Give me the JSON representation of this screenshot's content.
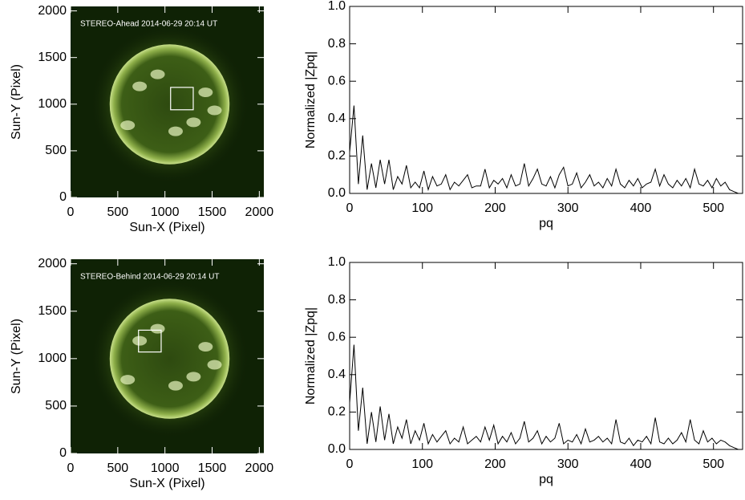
{
  "chart_data": [
    {
      "type": "image",
      "annotation": "STEREO-Ahead 2014-06-29 20:14 UT",
      "xlabel": "Sun-X (Pixel)",
      "ylabel": "Sun-Y (Pixel)",
      "xlim": [
        0,
        2048
      ],
      "ylim": [
        0,
        2048
      ],
      "xticks": [
        0,
        500,
        1000,
        1500,
        2000
      ],
      "yticks": [
        0,
        500,
        1000,
        1500,
        2000
      ],
      "box": {
        "x": [
          1060,
          1300
        ],
        "y": [
          940,
          1180
        ]
      }
    },
    {
      "type": "line",
      "xlabel": "pq",
      "ylabel": "Normalized |Zpq|",
      "color": "#000000",
      "xlim": [
        0,
        540
      ],
      "ylim": [
        0,
        1
      ],
      "xticks": [
        0,
        100,
        200,
        300,
        400,
        500
      ],
      "yticks": [
        {
          "value": 0,
          "label": "0.0"
        },
        {
          "value": 0.2,
          "label": "0.2"
        },
        {
          "value": 0.4,
          "label": "0.4"
        },
        {
          "value": 0.6,
          "label": "0.6"
        },
        {
          "value": 0.8,
          "label": "0.8"
        },
        {
          "value": 1,
          "label": "1.0"
        }
      ],
      "x": [
        0,
        6,
        12,
        18,
        24,
        30,
        36,
        42,
        48,
        54,
        60,
        66,
        72,
        78,
        84,
        90,
        96,
        102,
        108,
        114,
        120,
        126,
        132,
        138,
        144,
        150,
        156,
        162,
        168,
        174,
        180,
        186,
        192,
        198,
        204,
        210,
        216,
        222,
        228,
        234,
        240,
        246,
        252,
        258,
        264,
        270,
        276,
        282,
        288,
        294,
        300,
        306,
        312,
        318,
        324,
        330,
        336,
        342,
        348,
        354,
        360,
        366,
        372,
        378,
        384,
        390,
        396,
        402,
        408,
        414,
        420,
        426,
        432,
        438,
        444,
        450,
        456,
        462,
        468,
        474,
        480,
        486,
        492,
        498,
        504,
        510,
        516,
        522,
        528,
        534
      ],
      "values": [
        0.22,
        0.47,
        0.05,
        0.31,
        0.02,
        0.16,
        0.03,
        0.18,
        0.05,
        0.18,
        0.02,
        0.09,
        0.05,
        0.15,
        0.03,
        0.06,
        0.03,
        0.12,
        0.02,
        0.09,
        0.04,
        0.05,
        0.1,
        0.02,
        0.06,
        0.04,
        0.07,
        0.1,
        0.03,
        0.04,
        0.04,
        0.13,
        0.03,
        0.07,
        0.05,
        0.08,
        0.03,
        0.1,
        0.04,
        0.05,
        0.16,
        0.04,
        0.08,
        0.13,
        0.05,
        0.04,
        0.09,
        0.03,
        0.1,
        0.14,
        0.04,
        0.05,
        0.11,
        0.03,
        0.06,
        0.1,
        0.04,
        0.06,
        0.03,
        0.08,
        0.04,
        0.13,
        0.05,
        0.03,
        0.07,
        0.04,
        0.08,
        0.03,
        0.05,
        0.06,
        0.13,
        0.04,
        0.1,
        0.05,
        0.03,
        0.07,
        0.04,
        0.08,
        0.03,
        0.13,
        0.05,
        0.04,
        0.07,
        0.03,
        0.08,
        0.04,
        0.06,
        0.02,
        0.01,
        0.0
      ]
    },
    {
      "type": "image",
      "annotation": "STEREO-Behind 2014-06-29 20:14 UT",
      "xlabel": "Sun-X (Pixel)",
      "ylabel": "Sun-Y (Pixel)",
      "xlim": [
        0,
        2048
      ],
      "ylim": [
        0,
        2048
      ],
      "xticks": [
        0,
        500,
        1000,
        1500,
        2000
      ],
      "yticks": [
        0,
        500,
        1000,
        1500,
        2000
      ],
      "box": {
        "x": [
          720,
          960
        ],
        "y": [
          1070,
          1300
        ]
      }
    },
    {
      "type": "line",
      "xlabel": "pq",
      "ylabel": "Normalized |Zpq|",
      "color": "#000000",
      "xlim": [
        0,
        540
      ],
      "ylim": [
        0,
        1
      ],
      "xticks": [
        0,
        100,
        200,
        300,
        400,
        500
      ],
      "yticks": [
        {
          "value": 0,
          "label": "0.0"
        },
        {
          "value": 0.2,
          "label": "0.2"
        },
        {
          "value": 0.4,
          "label": "0.4"
        },
        {
          "value": 0.6,
          "label": "0.6"
        },
        {
          "value": 0.8,
          "label": "0.8"
        },
        {
          "value": 1,
          "label": "1.0"
        }
      ],
      "x": [
        0,
        6,
        12,
        18,
        24,
        30,
        36,
        42,
        48,
        54,
        60,
        66,
        72,
        78,
        84,
        90,
        96,
        102,
        108,
        114,
        120,
        126,
        132,
        138,
        144,
        150,
        156,
        162,
        168,
        174,
        180,
        186,
        192,
        198,
        204,
        210,
        216,
        222,
        228,
        234,
        240,
        246,
        252,
        258,
        264,
        270,
        276,
        282,
        288,
        294,
        300,
        306,
        312,
        318,
        324,
        330,
        336,
        342,
        348,
        354,
        360,
        366,
        372,
        378,
        384,
        390,
        396,
        402,
        408,
        414,
        420,
        426,
        432,
        438,
        444,
        450,
        456,
        462,
        468,
        474,
        480,
        486,
        492,
        498,
        504,
        510,
        516,
        522,
        528,
        534
      ],
      "values": [
        0.25,
        0.56,
        0.1,
        0.33,
        0.03,
        0.2,
        0.04,
        0.23,
        0.05,
        0.19,
        0.03,
        0.12,
        0.06,
        0.16,
        0.03,
        0.1,
        0.05,
        0.14,
        0.03,
        0.08,
        0.04,
        0.07,
        0.1,
        0.03,
        0.06,
        0.04,
        0.12,
        0.03,
        0.05,
        0.07,
        0.04,
        0.12,
        0.05,
        0.13,
        0.03,
        0.07,
        0.04,
        0.09,
        0.03,
        0.06,
        0.15,
        0.04,
        0.06,
        0.1,
        0.03,
        0.07,
        0.04,
        0.06,
        0.14,
        0.03,
        0.05,
        0.04,
        0.08,
        0.03,
        0.11,
        0.04,
        0.05,
        0.07,
        0.04,
        0.06,
        0.03,
        0.16,
        0.04,
        0.03,
        0.06,
        0.02,
        0.05,
        0.04,
        0.07,
        0.03,
        0.17,
        0.04,
        0.03,
        0.06,
        0.03,
        0.05,
        0.09,
        0.04,
        0.16,
        0.05,
        0.03,
        0.1,
        0.04,
        0.06,
        0.03,
        0.05,
        0.04,
        0.02,
        0.01,
        0.0
      ]
    }
  ]
}
